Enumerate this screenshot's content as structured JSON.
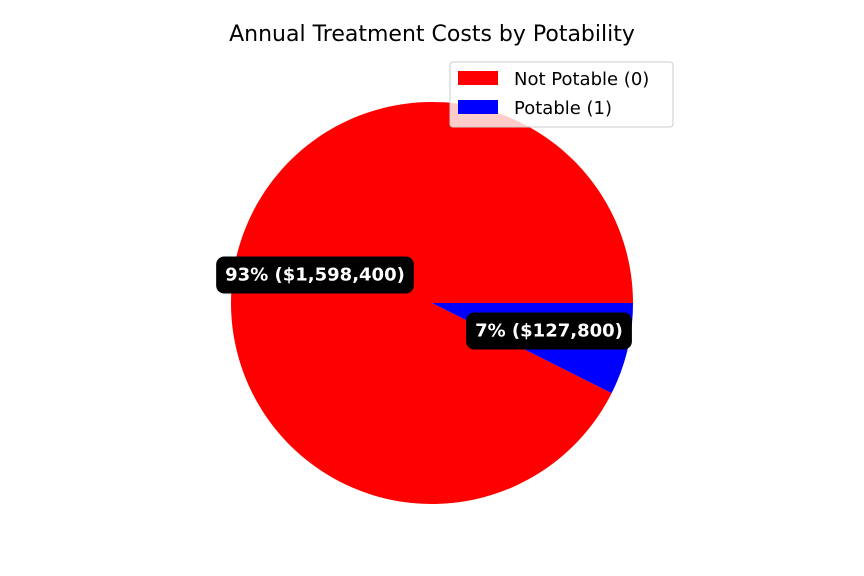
{
  "chart_data": {
    "type": "pie",
    "title": "Annual Treatment Costs by Potability",
    "legend_position": "top-right",
    "start_angle": 0,
    "direction": "clockwise",
    "slices": [
      {
        "label": "Not Potable (0)",
        "value": 1598400,
        "percent": 93,
        "data_label": "93% ($1,598,400)",
        "color": "#ff0000"
      },
      {
        "label": "Potable (1)",
        "value": 127800,
        "percent": 7,
        "data_label": "7% ($127,800)",
        "color": "#0000ff"
      }
    ]
  }
}
